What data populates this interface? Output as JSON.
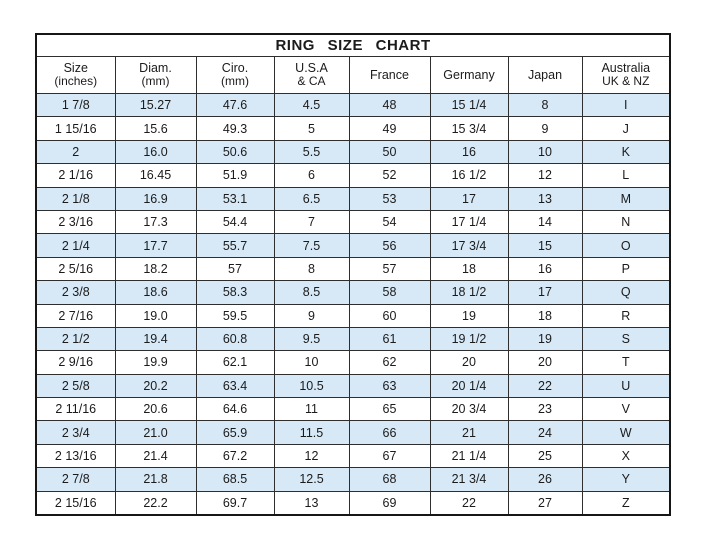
{
  "title": "RING SIZE CHART",
  "colors": {
    "row_alternate": "#d7e9f7",
    "row_plain": "#ffffff",
    "border": "#2e2e2e",
    "text": "#1b1b1b"
  },
  "chart_data": {
    "type": "table",
    "title": "RING SIZE CHART",
    "columns": [
      {
        "label": "Size",
        "sublabel": "(inches)"
      },
      {
        "label": "Diam.",
        "sublabel": "(mm)"
      },
      {
        "label": "Ciro.",
        "sublabel": "(mm)"
      },
      {
        "label": "U.S.A",
        "sublabel": "& CA"
      },
      {
        "label": "France",
        "sublabel": ""
      },
      {
        "label": "Germany",
        "sublabel": ""
      },
      {
        "label": "Japan",
        "sublabel": ""
      },
      {
        "label": "Australia",
        "sublabel": "UK & NZ"
      }
    ],
    "rows": [
      [
        "1 7/8",
        "15.27",
        "47.6",
        "4.5",
        "48",
        "15 1/4",
        "8",
        "I"
      ],
      [
        "1 15/16",
        "15.6",
        "49.3",
        "5",
        "49",
        "15 3/4",
        "9",
        "J"
      ],
      [
        "2",
        "16.0",
        "50.6",
        "5.5",
        "50",
        "16",
        "10",
        "K"
      ],
      [
        "2 1/16",
        "16.45",
        "51.9",
        "6",
        "52",
        "16 1/2",
        "12",
        "L"
      ],
      [
        "2 1/8",
        "16.9",
        "53.1",
        "6.5",
        "53",
        "17",
        "13",
        "M"
      ],
      [
        "2 3/16",
        "17.3",
        "54.4",
        "7",
        "54",
        "17 1/4",
        "14",
        "N"
      ],
      [
        "2 1/4",
        "17.7",
        "55.7",
        "7.5",
        "56",
        "17 3/4",
        "15",
        "O"
      ],
      [
        "2 5/16",
        "18.2",
        "57",
        "8",
        "57",
        "18",
        "16",
        "P"
      ],
      [
        "2 3/8",
        "18.6",
        "58.3",
        "8.5",
        "58",
        "18 1/2",
        "17",
        "Q"
      ],
      [
        "2 7/16",
        "19.0",
        "59.5",
        "9",
        "60",
        "19",
        "18",
        "R"
      ],
      [
        "2 1/2",
        "19.4",
        "60.8",
        "9.5",
        "61",
        "19 1/2",
        "19",
        "S"
      ],
      [
        "2 9/16",
        "19.9",
        "62.1",
        "10",
        "62",
        "20",
        "20",
        "T"
      ],
      [
        "2 5/8",
        "20.2",
        "63.4",
        "10.5",
        "63",
        "20 1/4",
        "22",
        "U"
      ],
      [
        "2 11/16",
        "20.6",
        "64.6",
        "11",
        "65",
        "20 3/4",
        "23",
        "V"
      ],
      [
        "2 3/4",
        "21.0",
        "65.9",
        "11.5",
        "66",
        "21",
        "24",
        "W"
      ],
      [
        "2 13/16",
        "21.4",
        "67.2",
        "12",
        "67",
        "21 1/4",
        "25",
        "X"
      ],
      [
        "2 7/8",
        "21.8",
        "68.5",
        "12.5",
        "68",
        "21 3/4",
        "26",
        "Y"
      ],
      [
        "2 15/16",
        "22.2",
        "69.7",
        "13",
        "69",
        "22",
        "27",
        "Z"
      ]
    ]
  }
}
